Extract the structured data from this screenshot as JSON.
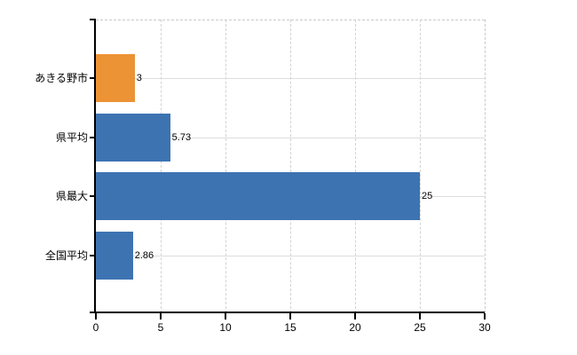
{
  "chart_data": {
    "type": "bar",
    "orientation": "horizontal",
    "title": "",
    "xlabel": "",
    "ylabel": "",
    "categories": [
      "あきる野市",
      "県平均",
      "県最大",
      "全国平均"
    ],
    "values": [
      3,
      5.73,
      25,
      2.86
    ],
    "value_labels": [
      "3",
      "5.73",
      "25",
      "2.86"
    ],
    "bar_colors": [
      "#EC9335",
      "#3E73B2",
      "#3E73B2",
      "#3E73B2"
    ],
    "xlim": [
      0,
      30
    ],
    "x_ticks": [
      0,
      5,
      10,
      15,
      20,
      25,
      30
    ],
    "grid": "on",
    "legend": "none"
  },
  "colors": {
    "bar_orange": "#EC9335",
    "bar_blue": "#3E73B2",
    "gridline_vertical": "#d2d2d2",
    "gridline_horizontal": "#dadfda",
    "dashed_border": "#c9c9c9",
    "axis": "#000000",
    "text": "#000000",
    "background": "#ffffff"
  }
}
